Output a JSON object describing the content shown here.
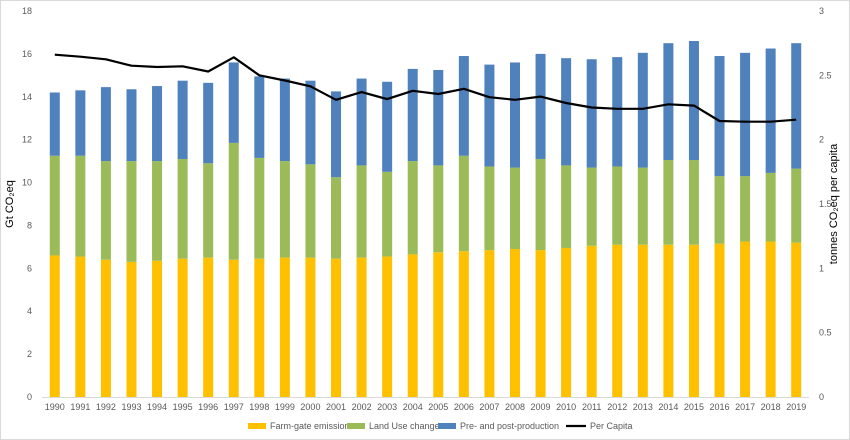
{
  "chart_data": {
    "type": "bar",
    "stacked": true,
    "categories": [
      "1990",
      "1991",
      "1992",
      "1993",
      "1994",
      "1995",
      "1996",
      "1997",
      "1998",
      "1999",
      "2000",
      "2001",
      "2002",
      "2003",
      "2004",
      "2005",
      "2006",
      "2007",
      "2008",
      "2009",
      "2010",
      "2011",
      "2012",
      "2013",
      "2014",
      "2015",
      "2016",
      "2017",
      "2018",
      "2019"
    ],
    "series": [
      {
        "name": "Farm-gate emissions",
        "color": "#FFC000",
        "values": [
          6.6,
          6.55,
          6.4,
          6.3,
          6.35,
          6.45,
          6.5,
          6.4,
          6.45,
          6.5,
          6.5,
          6.45,
          6.5,
          6.55,
          6.65,
          6.75,
          6.8,
          6.85,
          6.9,
          6.85,
          6.95,
          7.05,
          7.1,
          7.1,
          7.1,
          7.1,
          7.15,
          7.25,
          7.25,
          7.2
        ]
      },
      {
        "name": "Land Use change",
        "color": "#9BBB59",
        "values": [
          4.65,
          4.7,
          4.6,
          4.7,
          4.65,
          4.65,
          4.4,
          5.45,
          4.7,
          4.5,
          4.35,
          3.8,
          4.3,
          3.95,
          4.35,
          4.05,
          4.45,
          3.9,
          3.8,
          4.25,
          3.85,
          3.65,
          3.65,
          3.6,
          3.95,
          3.95,
          3.15,
          3.05,
          3.2,
          3.45
        ]
      },
      {
        "name": "Pre- and post-production",
        "color": "#4F81BD",
        "values": [
          2.95,
          3.05,
          3.45,
          3.35,
          3.5,
          3.65,
          3.75,
          3.75,
          3.8,
          3.85,
          3.9,
          4.0,
          4.05,
          4.2,
          4.3,
          4.45,
          4.65,
          4.75,
          4.9,
          4.9,
          5.0,
          5.05,
          5.1,
          5.35,
          5.45,
          5.55,
          5.6,
          5.75,
          5.8,
          5.85
        ]
      },
      {
        "name": "Per Capita",
        "color": "#000000",
        "axis": "right",
        "values": [
          2.66,
          2.645,
          2.625,
          2.575,
          2.565,
          2.57,
          2.53,
          2.64,
          2.5,
          2.46,
          2.415,
          2.31,
          2.37,
          2.315,
          2.38,
          2.355,
          2.395,
          2.33,
          2.31,
          2.335,
          2.285,
          2.25,
          2.24,
          2.24,
          2.275,
          2.265,
          2.145,
          2.14,
          2.14,
          2.155
        ]
      }
    ],
    "left_axis": {
      "label": "Gt CO₂eq",
      "ticks": [
        "0",
        "2",
        "4",
        "6",
        "8",
        "10",
        "12",
        "14",
        "16",
        "18"
      ],
      "ylim": [
        0,
        18
      ]
    },
    "right_axis": {
      "label": "tonnes CO₂eq per capita",
      "ticks": [
        "0",
        "0.5",
        "1",
        "1.5",
        "2",
        "2.5",
        "3"
      ],
      "ylim": [
        0,
        3
      ]
    },
    "grid": false,
    "legend_position": "bottom"
  }
}
